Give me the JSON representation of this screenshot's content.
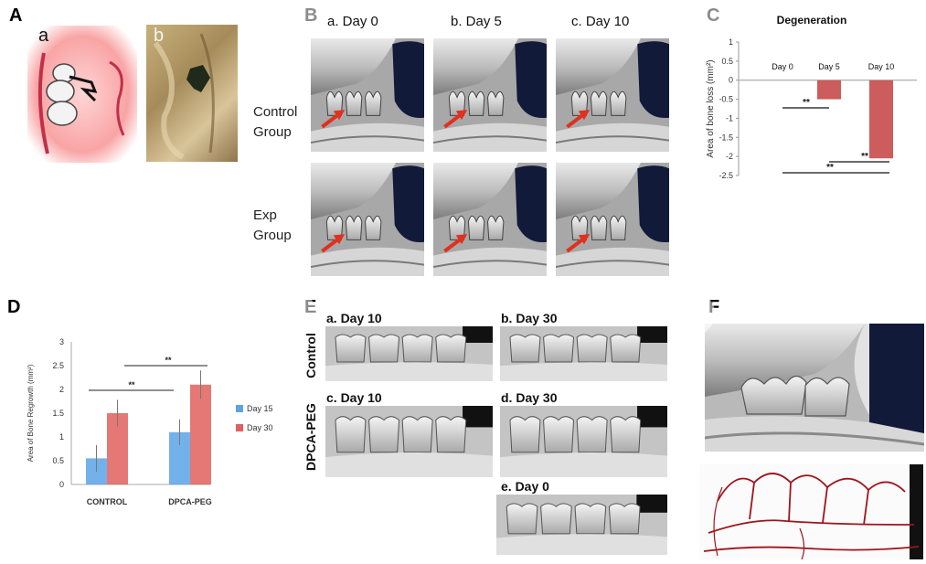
{
  "panels": {
    "A": {
      "label": "A",
      "sub_a": "a",
      "sub_b": "b"
    },
    "B": {
      "label": "B",
      "days": [
        "a.  Day 0",
        "b.  Day 5",
        "c.  Day 10"
      ],
      "groups": [
        {
          "line1": "Control",
          "line2": "Group"
        },
        {
          "line1": "Exp",
          "line2": "Group"
        }
      ]
    },
    "C": {
      "label": "C"
    },
    "D": {
      "label": "D"
    },
    "E": {
      "label": "E",
      "images": [
        "a. Day 10",
        "b. Day 30",
        "c. Day 10",
        "d. Day 30",
        "e. Day 0"
      ],
      "row_labels": [
        "Control",
        "DPCA-PEG"
      ]
    },
    "F": {
      "label": "F"
    }
  },
  "chart_data": [
    {
      "type": "bar",
      "title": "Degeneration",
      "ylabel": "Area of bone loss (mm²)",
      "categories": [
        "Day 0",
        "Day 5",
        "Day 10"
      ],
      "values": [
        0,
        -0.5,
        -2.05
      ],
      "ylim": [
        -2.5,
        1
      ],
      "yticks": [
        "1",
        "0.5",
        "0",
        "-0.5",
        "-1",
        "-1.5",
        "-2",
        "-2.5"
      ],
      "color": "#cd5c5c",
      "annotations": [
        "**",
        "**",
        "**"
      ]
    },
    {
      "type": "bar",
      "ylabel": "Area of Bone Regrowth (mm²)",
      "categories": [
        "CONTROL",
        "DPCA-PEG"
      ],
      "series": [
        {
          "name": "Day 15",
          "values": [
            0.55,
            1.1
          ],
          "errors": [
            0.28,
            0.27
          ],
          "color": "#5ba3e6"
        },
        {
          "name": "Day 30",
          "values": [
            1.5,
            2.1
          ],
          "errors": [
            0.28,
            0.3
          ],
          "color": "#e0605d"
        }
      ],
      "ylim": [
        0,
        3
      ],
      "yticks": [
        "0",
        "0.5",
        "1",
        "1.5",
        "2",
        "2.5",
        "3"
      ],
      "legend": "right",
      "annotations": [
        "**",
        "**"
      ]
    }
  ]
}
